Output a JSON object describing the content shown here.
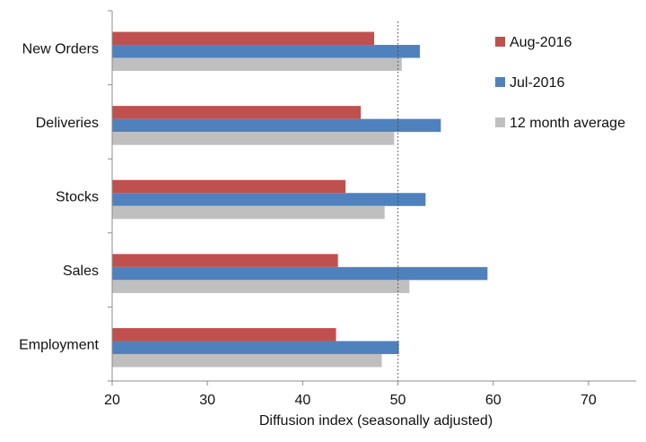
{
  "chart_data": {
    "type": "bar",
    "orientation": "horizontal",
    "title": "",
    "categories": [
      "New Orders",
      "Deliveries",
      "Stocks",
      "Sales",
      "Employment"
    ],
    "series": [
      {
        "name": "Aug-2016",
        "color": "#C0504D",
        "values": [
          47.5,
          46.1,
          44.5,
          43.7,
          43.5
        ]
      },
      {
        "name": "Jul-2016",
        "color": "#4F81BD",
        "values": [
          52.3,
          54.5,
          52.9,
          59.4,
          50.1
        ]
      },
      {
        "name": "12 month average",
        "color": "#BFBFBF",
        "values": [
          50.4,
          49.6,
          48.6,
          51.2,
          48.3
        ]
      }
    ],
    "xlabel": "Diffusion index (seasonally adjusted)",
    "ylabel": "",
    "xlim": [
      20,
      75
    ],
    "xticks": [
      "20",
      "30",
      "40",
      "50",
      "60",
      "70"
    ],
    "reference_line": {
      "value": 50,
      "style": "dotted"
    },
    "legend_position": "top-right",
    "grid": false
  }
}
